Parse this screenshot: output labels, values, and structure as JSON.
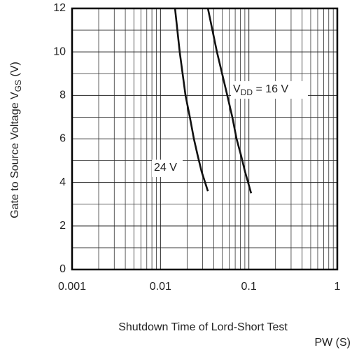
{
  "chart_data": {
    "type": "line",
    "xlog": true,
    "xlim": [
      0.001,
      1
    ],
    "ylim": [
      0,
      12
    ],
    "xticks": [
      0.001,
      0.01,
      0.1,
      1
    ],
    "yticks": [
      0,
      2,
      4,
      6,
      8,
      10,
      12
    ],
    "xminor_ticks": [
      0.002,
      0.003,
      0.004,
      0.005,
      0.006,
      0.007,
      0.008,
      0.009,
      0.02,
      0.03,
      0.04,
      0.05,
      0.06,
      0.07,
      0.08,
      0.09,
      0.2,
      0.3,
      0.4,
      0.5,
      0.6,
      0.7,
      0.8,
      0.9
    ],
    "yminor_ticks": [
      1,
      3,
      5,
      7,
      9,
      11
    ],
    "grid": true,
    "ylabel": [
      "Gate to Source Voltage  V",
      "GS",
      " (V)"
    ],
    "xlabel": [
      "Shutdown Time of Lord-Short Test",
      "PW  (S)"
    ],
    "series": [
      {
        "color": "#111111",
        "x": [
          0.0146,
          0.0165,
          0.0192,
          0.0215,
          0.0239,
          0.0265,
          0.0292,
          0.0344
        ],
        "y": [
          12,
          10,
          8,
          7,
          6,
          5.2,
          4.5,
          3.6
        ]
      },
      {
        "color": "#111111",
        "x": [
          0.0344,
          0.0435,
          0.057,
          0.065,
          0.0726,
          0.082,
          0.0903,
          0.106
        ],
        "y": [
          12,
          10,
          8,
          7,
          6,
          5.2,
          4.5,
          3.5
        ]
      }
    ],
    "annotations": [
      {
        "text": [
          "24 V"
        ]
      },
      {
        "text": [
          "V",
          "DD",
          " = 16 V"
        ]
      }
    ]
  }
}
